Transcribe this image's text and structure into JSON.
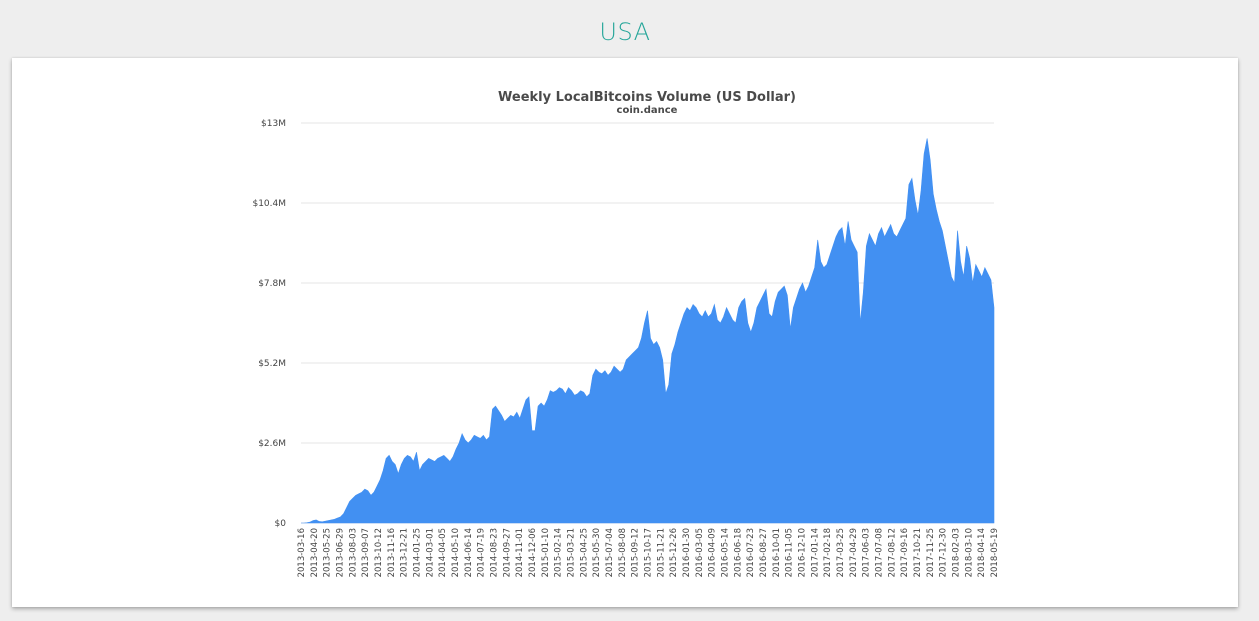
{
  "page": {
    "heading": "USA"
  },
  "colors": {
    "heading": "#26a69a",
    "area_fill": "#4290f2",
    "grid": "#e6e6e6",
    "background": "#eeeeee"
  },
  "chart_data": {
    "type": "area",
    "title": "Weekly LocalBitcoins Volume (US Dollar)",
    "subtitle": "coin.dance",
    "xlabel": "",
    "ylabel": "",
    "legend": "none",
    "grid": true,
    "ylim": [
      0,
      13000000
    ],
    "y_ticks": [
      "$0",
      "$2.6M",
      "$5.2M",
      "$7.8M",
      "$10.4M",
      "$13M"
    ],
    "x_ticks": [
      "2013-03-16",
      "2013-04-20",
      "2013-05-25",
      "2013-06-29",
      "2013-08-03",
      "2013-09-07",
      "2013-10-12",
      "2013-11-16",
      "2013-12-21",
      "2014-01-25",
      "2014-03-01",
      "2014-04-05",
      "2014-05-10",
      "2014-06-14",
      "2014-07-19",
      "2014-08-23",
      "2014-09-27",
      "2014-11-01",
      "2014-12-06",
      "2015-01-10",
      "2015-02-14",
      "2015-03-21",
      "2015-04-25",
      "2015-05-30",
      "2015-07-04",
      "2015-08-08",
      "2015-09-12",
      "2015-10-17",
      "2015-11-21",
      "2015-12-26",
      "2016-01-30",
      "2016-03-05",
      "2016-04-09",
      "2016-05-14",
      "2016-06-18",
      "2016-07-23",
      "2016-08-27",
      "2016-10-01",
      "2016-11-05",
      "2016-12-10",
      "2017-01-14",
      "2017-02-18",
      "2017-03-25",
      "2017-04-29",
      "2017-06-03",
      "2017-07-08",
      "2017-08-12",
      "2017-09-16",
      "2017-10-21",
      "2017-11-25",
      "2017-12-30",
      "2018-02-03",
      "2018-03-10",
      "2018-04-14",
      "2018-05-19"
    ],
    "series": [
      {
        "values": [
          0,
          0,
          10000,
          30000,
          80000,
          100000,
          50000,
          40000,
          60000,
          80000,
          100000,
          120000,
          160000,
          200000,
          300000,
          500000,
          700000,
          800000,
          900000,
          950000,
          1000000,
          1100000,
          1050000,
          900000,
          1000000,
          1200000,
          1400000,
          1700000,
          2100000,
          2200000,
          2000000,
          1900000,
          1600000,
          1900000,
          2100000,
          2200000,
          2150000,
          2000000,
          2300000,
          1700000,
          1900000,
          2000000,
          2100000,
          2050000,
          2000000,
          2100000,
          2150000,
          2200000,
          2100000,
          2000000,
          2150000,
          2400000,
          2600000,
          2900000,
          2700000,
          2600000,
          2700000,
          2850000,
          2800000,
          2750000,
          2850000,
          2700000,
          2800000,
          3700000,
          3800000,
          3650000,
          3500000,
          3300000,
          3400000,
          3500000,
          3450000,
          3600000,
          3400000,
          3700000,
          4000000,
          4100000,
          3000000,
          3000000,
          3800000,
          3900000,
          3800000,
          4000000,
          4300000,
          4250000,
          4300000,
          4400000,
          4350000,
          4200000,
          4400000,
          4300000,
          4150000,
          4200000,
          4300000,
          4250000,
          4100000,
          4200000,
          4800000,
          5000000,
          4900000,
          4850000,
          4950000,
          4800000,
          4900000,
          5100000,
          5000000,
          4900000,
          5000000,
          5300000,
          5400000,
          5500000,
          5600000,
          5700000,
          6000000,
          6500000,
          6900000,
          6000000,
          5800000,
          5900000,
          5700000,
          5300000,
          4200000,
          4500000,
          5500000,
          5800000,
          6200000,
          6500000,
          6800000,
          7000000,
          6900000,
          7100000,
          7000000,
          6800000,
          6700000,
          6900000,
          6700000,
          6800000,
          7100000,
          6600000,
          6500000,
          6700000,
          7000000,
          6800000,
          6600000,
          6500000,
          7000000,
          7200000,
          7300000,
          6500000,
          6200000,
          6500000,
          7000000,
          7200000,
          7400000,
          7600000,
          6800000,
          6700000,
          7200000,
          7500000,
          7600000,
          7700000,
          7400000,
          6300000,
          7000000,
          7300000,
          7600000,
          7800000,
          7500000,
          7700000,
          8000000,
          8300000,
          9200000,
          8500000,
          8300000,
          8400000,
          8700000,
          9000000,
          9300000,
          9500000,
          9600000,
          9000000,
          9800000,
          9200000,
          9000000,
          8800000,
          6500000,
          7500000,
          9000000,
          9400000,
          9200000,
          9000000,
          9400000,
          9600000,
          9300000,
          9500000,
          9700000,
          9400000,
          9300000,
          9500000,
          9700000,
          9900000,
          11000000,
          11200000,
          10500000,
          10000000,
          10800000,
          12000000,
          12500000,
          11800000,
          10700000,
          10200000,
          9800000,
          9500000,
          9000000,
          8500000,
          8000000,
          7800000,
          9500000,
          8500000,
          8000000,
          9000000,
          8600000,
          7800000,
          8400000,
          8200000,
          8000000,
          8300000,
          8100000,
          7900000,
          7000000
        ]
      }
    ]
  }
}
